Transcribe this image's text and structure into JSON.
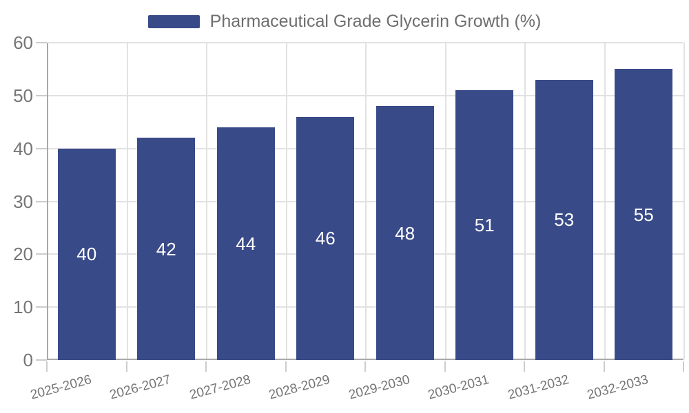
{
  "chart_data": {
    "type": "bar",
    "title": "Pharmaceutical Grade Glycerin Growth (%)",
    "legend": {
      "label": "Pharmaceutical Grade Glycerin Growth (%)",
      "position": "top-center"
    },
    "categories": [
      "2025-2026",
      "2026-2027",
      "2027-2028",
      "2028-2029",
      "2029-2030",
      "2030-2031",
      "2031-2032",
      "2032-2033"
    ],
    "values": [
      40,
      42,
      44,
      46,
      48,
      51,
      53,
      55
    ],
    "xlabel": "",
    "ylabel": "",
    "ylim": [
      0,
      60
    ],
    "yticks": [
      0,
      10,
      20,
      30,
      40,
      50,
      60
    ],
    "grid": true,
    "x_label_rotation_deg": -15,
    "value_labels_inside_bars": true,
    "colors": {
      "bar": "#394A88",
      "grid_line": "#e2e2e2",
      "axis_line": "#a9a9a9",
      "tick": "#cccccc",
      "axis_text": "#757575",
      "legend_text": "#6e6e6e",
      "value_label": "#ffffff",
      "background": "#ffffff"
    }
  }
}
